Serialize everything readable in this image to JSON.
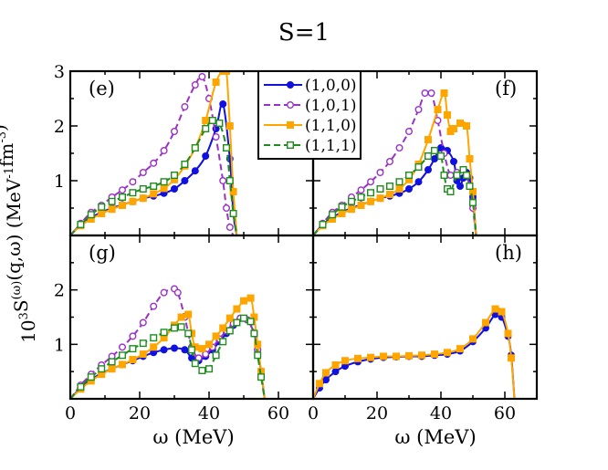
{
  "chart_data": {
    "type": "line",
    "title": "S=1",
    "ylabel": "10³S^(ω)(q,ω) (MeV⁻¹fm⁻³)",
    "xlabel": "ω (MeV)",
    "x_ticks": [
      0,
      20,
      40,
      60
    ],
    "y_ticks_top": [
      1,
      2,
      3
    ],
    "y_ticks_bottom": [
      1,
      2
    ],
    "xlim": [
      0,
      70
    ],
    "ylim_top": [
      0,
      3
    ],
    "ylim_bottom": [
      0,
      3
    ],
    "legend": {
      "placement": "top-center",
      "entries": [
        {
          "label": "(1,0,0)",
          "color": "#1010e0",
          "dash": "solid",
          "marker": "circle-filled"
        },
        {
          "label": "(1,0,1)",
          "color": "#9b30c8",
          "dash": "dashed",
          "marker": "circle-open"
        },
        {
          "label": "(1,1,0)",
          "color": "#ffa500",
          "dash": "solid",
          "marker": "square-filled"
        },
        {
          "label": "(1,1,1)",
          "color": "#1e8c1e",
          "dash": "dashed",
          "marker": "square-open"
        }
      ]
    },
    "panels": [
      {
        "label": "(e)",
        "position": "top-left",
        "series": [
          {
            "name": "(1,0,0)",
            "x": [
              0,
              3,
              6,
              9,
              12,
              15,
              18,
              21,
              24,
              27,
              30,
              33,
              36,
              39,
              42,
              44,
              46,
              47,
              48
            ],
            "y": [
              0,
              0.2,
              0.33,
              0.42,
              0.5,
              0.56,
              0.62,
              0.68,
              0.72,
              0.77,
              0.85,
              1.0,
              1.18,
              1.45,
              1.95,
              2.4,
              1.4,
              0.4,
              0
            ]
          },
          {
            "name": "(1,0,1)",
            "x": [
              0,
              3,
              6,
              9,
              12,
              15,
              18,
              21,
              24,
              27,
              30,
              33,
              36,
              38,
              40,
              42,
              44,
              45,
              46,
              47
            ],
            "y": [
              0,
              0.22,
              0.42,
              0.55,
              0.7,
              0.83,
              0.98,
              1.15,
              1.32,
              1.55,
              1.9,
              2.35,
              2.75,
              2.9,
              2.5,
              1.8,
              1.0,
              0.5,
              0.15,
              0
            ]
          },
          {
            "name": "(1,1,0)",
            "x": [
              0,
              3,
              6,
              9,
              12,
              15,
              18,
              21,
              24,
              27,
              30,
              33,
              36,
              39,
              42,
              44,
              45,
              46,
              47,
              48
            ],
            "y": [
              0,
              0.18,
              0.3,
              0.4,
              0.48,
              0.55,
              0.62,
              0.68,
              0.76,
              0.86,
              1.02,
              1.27,
              1.6,
              2.1,
              2.8,
              3.0,
              3.0,
              2.0,
              0.8,
              0
            ]
          },
          {
            "name": "(1,1,1)",
            "x": [
              0,
              3,
              6,
              9,
              12,
              15,
              18,
              21,
              24,
              27,
              30,
              33,
              36,
              39,
              41,
              43,
              45,
              46,
              47,
              48
            ],
            "y": [
              0,
              0.2,
              0.38,
              0.52,
              0.62,
              0.7,
              0.78,
              0.85,
              0.9,
              0.98,
              1.1,
              1.3,
              1.6,
              1.95,
              2.1,
              2.05,
              1.6,
              1.0,
              0.4,
              0
            ]
          }
        ]
      },
      {
        "label": "(f)",
        "position": "top-right",
        "series": [
          {
            "name": "(1,0,0)",
            "x": [
              0,
              3,
              6,
              9,
              12,
              15,
              18,
              21,
              24,
              27,
              30,
              33,
              36,
              38,
              40,
              42,
              44,
              45,
              46,
              47,
              48,
              49,
              50,
              51
            ],
            "y": [
              0,
              0.2,
              0.33,
              0.42,
              0.5,
              0.56,
              0.62,
              0.68,
              0.72,
              0.77,
              0.85,
              0.98,
              1.2,
              1.4,
              1.6,
              1.55,
              1.35,
              1.0,
              0.9,
              1.05,
              1.15,
              1.05,
              0.7,
              0
            ]
          },
          {
            "name": "(1,0,1)",
            "x": [
              0,
              3,
              6,
              9,
              12,
              15,
              18,
              21,
              24,
              27,
              30,
              33,
              35,
              37,
              39,
              41,
              43,
              45,
              47,
              49,
              50,
              51
            ],
            "y": [
              0,
              0.22,
              0.42,
              0.55,
              0.7,
              0.83,
              0.98,
              1.15,
              1.35,
              1.6,
              1.9,
              2.3,
              2.6,
              2.6,
              2.1,
              1.5,
              1.1,
              1.15,
              1.2,
              0.9,
              0.5,
              0
            ]
          },
          {
            "name": "(1,1,0)",
            "x": [
              0,
              3,
              6,
              9,
              12,
              15,
              18,
              21,
              24,
              27,
              30,
              33,
              36,
              39,
              41,
              42,
              43,
              44,
              46,
              48,
              49,
              50,
              51
            ],
            "y": [
              0,
              0.18,
              0.3,
              0.4,
              0.48,
              0.55,
              0.62,
              0.68,
              0.75,
              0.85,
              1.02,
              1.3,
              1.75,
              2.3,
              2.6,
              2.2,
              1.9,
              1.95,
              2.05,
              2.0,
              1.4,
              0.8,
              0
            ]
          },
          {
            "name": "(1,1,1)",
            "x": [
              0,
              3,
              6,
              9,
              12,
              15,
              18,
              21,
              24,
              27,
              30,
              33,
              36,
              38,
              40,
              41,
              42,
              43,
              45,
              47,
              48,
              49,
              50,
              51
            ],
            "y": [
              0,
              0.2,
              0.38,
              0.52,
              0.62,
              0.7,
              0.78,
              0.85,
              0.9,
              0.98,
              1.1,
              1.25,
              1.45,
              1.55,
              1.45,
              1.1,
              0.85,
              0.8,
              1.1,
              1.2,
              1.1,
              0.9,
              0.6,
              0
            ]
          }
        ]
      },
      {
        "label": "(g)",
        "position": "bottom-left",
        "series": [
          {
            "name": "(1,0,0)",
            "x": [
              0,
              3,
              6,
              9,
              12,
              15,
              18,
              21,
              24,
              27,
              30,
              33,
              35,
              37,
              39,
              41,
              43,
              45,
              47,
              49,
              51,
              53,
              54,
              55,
              56
            ],
            "y": [
              0,
              0.2,
              0.35,
              0.47,
              0.55,
              0.63,
              0.7,
              0.78,
              0.85,
              0.9,
              0.93,
              0.9,
              0.75,
              0.7,
              0.78,
              0.9,
              1.05,
              1.2,
              1.35,
              1.48,
              1.45,
              1.2,
              0.9,
              0.5,
              0
            ]
          },
          {
            "name": "(1,0,1)",
            "x": [
              0,
              3,
              6,
              9,
              12,
              15,
              18,
              21,
              24,
              27,
              30,
              31,
              33,
              35,
              37,
              39,
              41,
              43,
              45,
              47,
              49,
              51,
              53,
              54,
              55,
              56
            ],
            "y": [
              0,
              0.25,
              0.45,
              0.62,
              0.78,
              0.95,
              1.15,
              1.4,
              1.7,
              1.95,
              2.02,
              1.95,
              1.5,
              0.95,
              0.75,
              0.82,
              0.95,
              1.1,
              1.25,
              1.38,
              1.48,
              1.45,
              1.2,
              0.9,
              0.5,
              0
            ]
          },
          {
            "name": "(1,1,0)",
            "x": [
              0,
              3,
              6,
              9,
              12,
              15,
              18,
              21,
              24,
              27,
              30,
              32,
              34,
              35,
              36,
              38,
              40,
              42,
              44,
              46,
              48,
              50,
              52,
              53,
              54,
              55,
              56
            ],
            "y": [
              0,
              0.18,
              0.33,
              0.45,
              0.55,
              0.63,
              0.72,
              0.82,
              0.95,
              1.12,
              1.35,
              1.5,
              1.55,
              1.2,
              0.95,
              0.92,
              1.0,
              1.15,
              1.3,
              1.48,
              1.65,
              1.8,
              1.85,
              1.5,
              1.0,
              0.5,
              0
            ]
          },
          {
            "name": "(1,1,1)",
            "x": [
              0,
              3,
              6,
              9,
              12,
              15,
              18,
              21,
              24,
              27,
              30,
              32,
              34,
              35,
              36,
              38,
              40,
              42,
              44,
              46,
              48,
              50,
              52,
              53,
              54,
              55,
              56
            ],
            "y": [
              0,
              0.22,
              0.4,
              0.55,
              0.68,
              0.8,
              0.92,
              1.02,
              1.12,
              1.22,
              1.3,
              1.32,
              1.2,
              0.9,
              0.65,
              0.52,
              0.55,
              0.8,
              1.05,
              1.25,
              1.4,
              1.48,
              1.42,
              1.2,
              0.8,
              0.4,
              0
            ]
          }
        ]
      },
      {
        "label": "(h)",
        "position": "bottom-right",
        "series": [
          {
            "name": "(1,0,0)",
            "x": [
              0,
              2,
              4,
              7,
              10,
              14,
              18,
              22,
              26,
              30,
              34,
              38,
              42,
              46,
              50,
              54,
              57,
              59,
              61,
              62,
              63
            ],
            "y": [
              0,
              0.2,
              0.35,
              0.5,
              0.6,
              0.68,
              0.73,
              0.76,
              0.77,
              0.78,
              0.78,
              0.8,
              0.82,
              0.88,
              1.05,
              1.3,
              1.55,
              1.5,
              1.15,
              0.8,
              0
            ]
          },
          {
            "name": "(1,1,0)",
            "x": [
              0,
              2,
              4,
              7,
              10,
              14,
              18,
              22,
              26,
              30,
              34,
              38,
              42,
              46,
              50,
              54,
              57,
              59,
              61,
              62,
              63
            ],
            "y": [
              0,
              0.28,
              0.48,
              0.62,
              0.7,
              0.74,
              0.76,
              0.78,
              0.78,
              0.79,
              0.8,
              0.82,
              0.85,
              0.92,
              1.1,
              1.4,
              1.65,
              1.6,
              1.2,
              0.75,
              0
            ]
          }
        ]
      }
    ]
  }
}
